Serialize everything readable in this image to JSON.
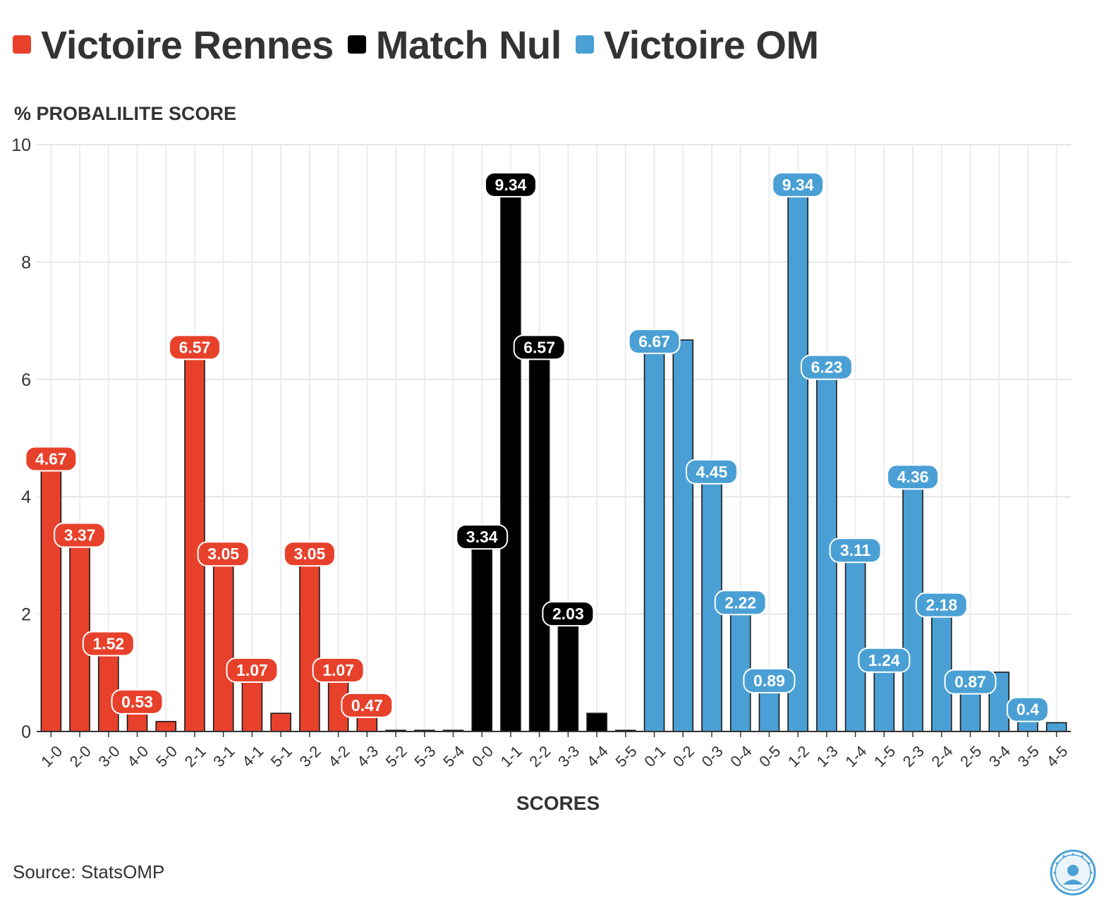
{
  "legend": {
    "items": [
      {
        "label": "Victoire Rennes",
        "color": "#e8412b"
      },
      {
        "label": "Match Nul",
        "color": "#000000"
      },
      {
        "label": "Victoire OM",
        "color": "#4aa0d5"
      }
    ]
  },
  "source": "Source: StatsOMP",
  "chart_data": {
    "type": "bar",
    "ylabel": "% PROBALILITE SCORE",
    "xlabel": "SCORES",
    "ylim": [
      0,
      10
    ],
    "yticks": [
      0,
      2,
      4,
      6,
      8,
      10
    ],
    "grid": true,
    "legend_position": "top-left",
    "categories": [
      "1-0",
      "2-0",
      "3-0",
      "4-0",
      "5-0",
      "2-1",
      "3-1",
      "4-1",
      "5-1",
      "3-2",
      "4-2",
      "4-3",
      "5-2",
      "5-3",
      "5-4",
      "0-0",
      "1-1",
      "2-2",
      "3-3",
      "4-4",
      "5-5",
      "0-1",
      "0-2",
      "0-3",
      "0-4",
      "0-5",
      "1-2",
      "1-3",
      "1-4",
      "1-5",
      "2-3",
      "2-4",
      "2-5",
      "3-4",
      "3-5",
      "4-5"
    ],
    "groups": [
      "Victoire Rennes",
      "Victoire Rennes",
      "Victoire Rennes",
      "Victoire Rennes",
      "Victoire Rennes",
      "Victoire Rennes",
      "Victoire Rennes",
      "Victoire Rennes",
      "Victoire Rennes",
      "Victoire Rennes",
      "Victoire Rennes",
      "Victoire Rennes",
      "Victoire Rennes",
      "Victoire Rennes",
      "Victoire Rennes",
      "Match Nul",
      "Match Nul",
      "Match Nul",
      "Match Nul",
      "Match Nul",
      "Match Nul",
      "Victoire OM",
      "Victoire OM",
      "Victoire OM",
      "Victoire OM",
      "Victoire OM",
      "Victoire OM",
      "Victoire OM",
      "Victoire OM",
      "Victoire OM",
      "Victoire OM",
      "Victoire OM",
      "Victoire OM",
      "Victoire OM",
      "Victoire OM",
      "Victoire OM"
    ],
    "values": [
      4.67,
      3.37,
      1.52,
      0.53,
      0.17,
      6.57,
      3.05,
      1.07,
      0.31,
      3.05,
      1.07,
      0.47,
      0.02,
      0.02,
      0.02,
      3.34,
      9.34,
      6.57,
      2.03,
      0.31,
      0.02,
      6.67,
      6.67,
      4.45,
      2.22,
      0.89,
      9.34,
      6.23,
      3.11,
      1.24,
      4.36,
      2.18,
      0.87,
      1.01,
      0.4,
      0.15
    ],
    "data_labels": [
      "4.67",
      "3.37",
      "1.52",
      "0.53",
      "",
      "6.57",
      "3.05",
      "1.07",
      "",
      "3.05",
      "1.07",
      "0.47",
      "",
      "",
      "",
      "3.34",
      "9.34",
      "6.57",
      "2.03",
      "",
      "",
      "6.67",
      "",
      "4.45",
      "2.22",
      "0.89",
      "9.34",
      "6.23",
      "3.11",
      "1.24",
      "4.36",
      "2.18",
      "0.87",
      "",
      "0.4",
      ""
    ]
  }
}
